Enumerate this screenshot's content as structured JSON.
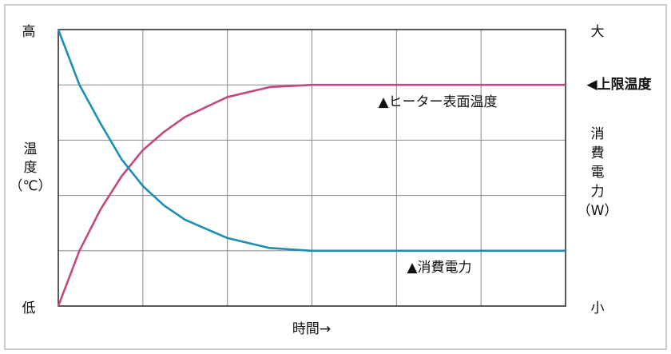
{
  "chart_data": {
    "type": "line",
    "ylabel_lines": [
      "温",
      "度",
      "（℃）"
    ],
    "y2label_lines": [
      "消",
      "費",
      "電",
      "力",
      "（W）"
    ],
    "xlabel": "時間→",
    "limit_annotation": "◀上限温度",
    "limit_color": "#e3001b",
    "x": [
      0,
      0.25,
      0.5,
      0.75,
      1,
      1.25,
      1.5,
      2,
      2.5,
      3,
      6
    ],
    "series": [
      {
        "name": "▲ヒーター表面温度",
        "color": "#c4487f",
        "values": [
          0,
          1.0,
          1.75,
          2.35,
          2.82,
          3.15,
          3.42,
          3.78,
          3.96,
          4,
          4
        ]
      },
      {
        "name": "▲消費電力",
        "color": "#1a8fb3",
        "axis": "y2",
        "values": [
          5,
          4.0,
          3.3,
          2.65,
          2.17,
          1.82,
          1.56,
          1.23,
          1.05,
          1,
          1
        ]
      }
    ],
    "xlim": [
      0,
      6
    ],
    "ylim": [
      0,
      5
    ],
    "y2lim": [
      0,
      5
    ],
    "yticks": [
      {
        "value": 5,
        "label": "高"
      },
      {
        "value": 0,
        "label": "低"
      }
    ],
    "y2ticks": [
      {
        "value": 5,
        "label": "大"
      },
      {
        "value": 0,
        "label": "小"
      }
    ],
    "xgrid": [
      0,
      1,
      2,
      3,
      4,
      5,
      6
    ],
    "ygrid": [
      0,
      1,
      2,
      3,
      4,
      5
    ],
    "grid": true
  }
}
